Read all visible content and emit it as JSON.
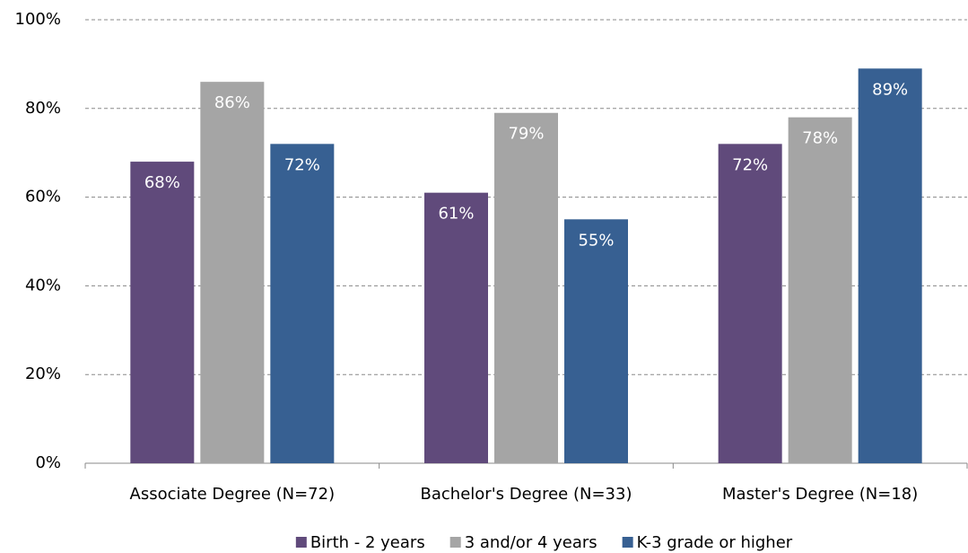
{
  "chart_data": {
    "type": "bar",
    "categories": [
      "Associate Degree (N=72)",
      "Bachelor's Degree (N=33)",
      "Master's Degree (N=18)"
    ],
    "series": [
      {
        "name": "Birth - 2 years",
        "color": "#604a7b",
        "values": [
          68,
          61,
          72
        ],
        "value_labels": [
          "68%",
          "61%",
          "72%"
        ]
      },
      {
        "name": "3 and/or 4 years",
        "color": "#a5a5a5",
        "values": [
          86,
          79,
          78
        ],
        "value_labels": [
          "86%",
          "79%",
          "78%"
        ]
      },
      {
        "name": "K-3 grade or higher",
        "color": "#376092",
        "values": [
          72,
          55,
          89
        ],
        "value_labels": [
          "72%",
          "55%",
          "89%"
        ]
      }
    ],
    "ylim": [
      0,
      100
    ],
    "yticks": [
      {
        "value": 0,
        "label": "0%"
      },
      {
        "value": 20,
        "label": "20%"
      },
      {
        "value": 40,
        "label": "40%"
      },
      {
        "value": 60,
        "label": "60%"
      },
      {
        "value": 80,
        "label": "80%"
      },
      {
        "value": 100,
        "label": "100%"
      }
    ],
    "grid": true,
    "legend": "bottom"
  }
}
